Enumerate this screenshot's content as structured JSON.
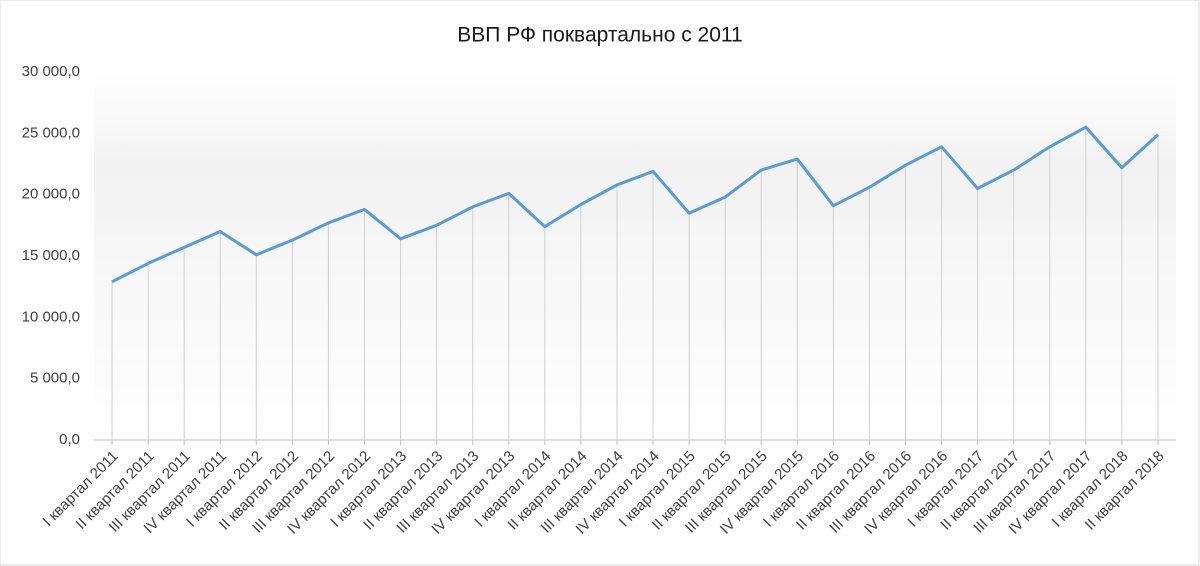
{
  "chart_data": {
    "type": "line",
    "title": "ВВП РФ поквартально  с 2011",
    "categories": [
      "I квартал 2011",
      "II квартал 2011",
      "III квартал 2011",
      "IV квартал 2011",
      "I квартал 2012",
      "II квартал 2012",
      "III квартал 2012",
      "IV квартал 2012",
      "I квартал 2013",
      "II квартал 2013",
      "III квартал 2013",
      "IV квартал 2013",
      "I квартал 2014",
      "II квартал 2014",
      "III квартал 2014",
      "IV квартал 2014",
      "I квартал 2015",
      "II квартал 2015",
      "III квартал 2015",
      "IV квартал 2015",
      "I квартал 2016",
      "II квартал 2016",
      "III квартал 2016",
      "IV квартал 2016",
      "I квартал 2017",
      "II квартал 2017",
      "III квартал 2017",
      "IV квартал 2017",
      "I квартал 2018",
      "II квартал 2018"
    ],
    "values": [
      12900,
      14400,
      15700,
      17000,
      15100,
      16300,
      17700,
      18800,
      16400,
      17500,
      19000,
      20100,
      17400,
      19200,
      20800,
      21900,
      18500,
      19800,
      22000,
      22900,
      19100,
      20600,
      22400,
      23900,
      20500,
      22000,
      23900,
      25500,
      22200,
      24900
    ],
    "color": "#5b9bd5",
    "ylim": [
      0,
      30000
    ],
    "yticks": [
      {
        "value": 0,
        "label": "0,0"
      },
      {
        "value": 5000,
        "label": "5 000,0"
      },
      {
        "value": 10000,
        "label": "10 000,0"
      },
      {
        "value": 15000,
        "label": "15 000,0"
      },
      {
        "value": 20000,
        "label": "20 000,0"
      },
      {
        "value": 25000,
        "label": "25 000,0"
      },
      {
        "value": 30000,
        "label": "30 000,0"
      }
    ],
    "drop_lines": true
  }
}
